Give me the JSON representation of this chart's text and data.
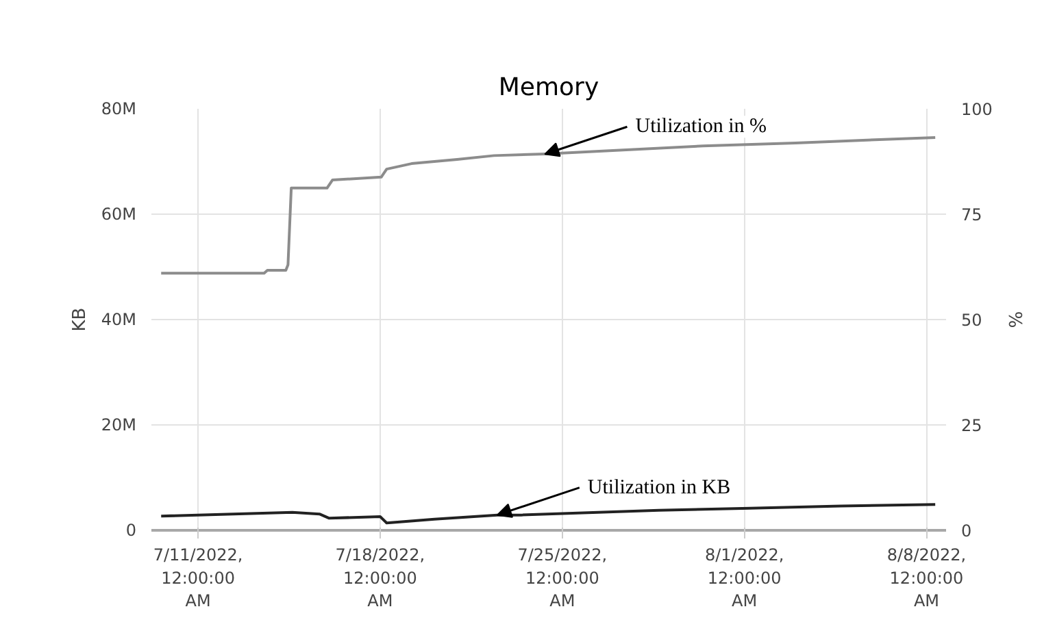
{
  "chart_data": {
    "type": "line",
    "title": "Memory",
    "ylabel": "KB",
    "y2label": "%",
    "xlim": [
      "2022-07-09T05:00",
      "2022-08-08T18:00"
    ],
    "xticks": [
      {
        "value": "2022-07-11",
        "label": "7/11/2022,\n12:00:00\nAM"
      },
      {
        "value": "2022-07-18",
        "label": "7/18/2022,\n12:00:00\nAM"
      },
      {
        "value": "2022-07-25",
        "label": "7/25/2022,\n12:00:00\nAM"
      },
      {
        "value": "2022-08-01",
        "label": "8/1/2022,\n12:00:00\nAM"
      },
      {
        "value": "2022-08-08",
        "label": "8/8/2022,\n12:00:00\nAM"
      }
    ],
    "ylim": [
      0,
      80000000
    ],
    "yticks": [
      {
        "value": 0,
        "label": "0"
      },
      {
        "value": 20000000,
        "label": "20M"
      },
      {
        "value": 40000000,
        "label": "40M"
      },
      {
        "value": 60000000,
        "label": "60M"
      },
      {
        "value": 80000000,
        "label": "80M"
      }
    ],
    "y2lim": [
      0,
      100
    ],
    "y2ticks": [
      0,
      25,
      50,
      75,
      100
    ],
    "grid": true,
    "series": [
      {
        "color": "#8c8c8c",
        "axis": "y2",
        "x": [
          "2022-07-09T14:00",
          "2022-07-13T13:00",
          "2022-07-13T16:00",
          "2022-07-14T09:00",
          "2022-07-14T11:00",
          "2022-07-14T14:00",
          "2022-07-15T23:00",
          "2022-07-16T04:00",
          "2022-07-18T01:00",
          "2022-07-18T06:00",
          "2022-07-19T05:00",
          "2022-07-20T23:00",
          "2022-07-22T09:00",
          "2022-07-24T08:00",
          "2022-07-30T10:00",
          "2022-08-02T23:00",
          "2022-08-08T08:00"
        ],
        "values": [
          61.0,
          61.0,
          61.7,
          61.7,
          63.0,
          81.2,
          81.2,
          83.1,
          83.8,
          85.7,
          87.0,
          88.0,
          88.9,
          89.3,
          91.2,
          91.9,
          93.2
        ]
      },
      {
        "color": "#222222",
        "x": [
          "2022-07-09T14:00",
          "2022-07-14T15:00",
          "2022-07-15T16:00",
          "2022-07-16T01:00",
          "2022-07-18T00:00",
          "2022-07-18T06:00",
          "2022-07-20T02:00",
          "2022-07-22T12:00",
          "2022-07-23T10:00",
          "2022-07-28T17:00",
          "2022-08-01T05:00",
          "2022-08-04T17:00",
          "2022-08-08T08:00"
        ],
        "values": [
          2700000,
          3400000,
          3100000,
          2300000,
          2600000,
          1400000,
          2100000,
          2900000,
          2900000,
          3800000,
          4200000,
          4600000,
          4900000
        ]
      }
    ],
    "annotations": [
      {
        "text": "Utilization in %",
        "x": "2022-07-24T08:00",
        "y": 71400000
      },
      {
        "text": "Utilization in KB",
        "x": "2022-07-22T12:00",
        "y": 2900000
      }
    ]
  }
}
